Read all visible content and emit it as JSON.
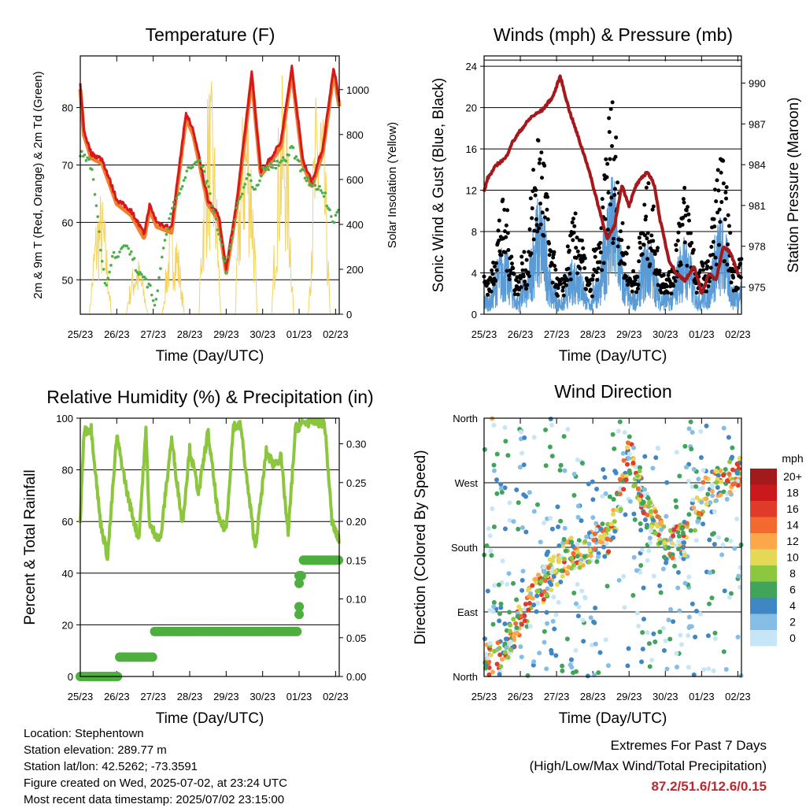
{
  "chart_data": [
    {
      "type": "line",
      "title": "Temperature (F)",
      "xlabel": "Time (Day/UTC)",
      "ylabel": "2m & 9m T (Red, Orange) & 2m Td (Green)",
      "ylabel_right": "Solar Insolation (Yellow)",
      "x_ticks": [
        "25/23",
        "26/23",
        "27/23",
        "28/23",
        "29/23",
        "30/23",
        "01/23",
        "02/23"
      ],
      "ylim": [
        44,
        89
      ],
      "y_ticks": [
        "50",
        "60",
        "70",
        "80"
      ],
      "ylim_right": [
        0,
        1150
      ],
      "y_ticks_right": [
        "0",
        "200",
        "400",
        "600",
        "800",
        "1000"
      ],
      "colors": {
        "t2m": "#d7191c",
        "t9m": "#f08030",
        "td": "#4daf4a",
        "solar": "#f4d35e"
      },
      "series": [
        {
          "name": "2m T",
          "axis": "left",
          "x": [
            0,
            0.1,
            0.3,
            0.6,
            1.0,
            1.4,
            1.75,
            1.9,
            2.1,
            2.5,
            2.9,
            3.1,
            3.5,
            3.8,
            4.0,
            4.3,
            4.7,
            4.95,
            5.2,
            5.5,
            5.8,
            6.1,
            6.35,
            6.65,
            6.95,
            7.1
          ],
          "y": [
            84,
            76,
            72,
            71,
            64,
            62,
            58,
            63,
            60,
            59,
            79,
            76,
            64,
            61,
            52,
            64,
            86,
            69,
            71,
            74,
            87,
            71,
            67,
            73,
            87,
            81
          ]
        },
        {
          "name": "2m Td",
          "axis": "left",
          "x": [
            0,
            0.3,
            0.45,
            0.7,
            0.9,
            1.3,
            1.6,
            1.9,
            2.05,
            2.3,
            2.5,
            2.8,
            3.0,
            3.3,
            3.5,
            3.7,
            4.0,
            4.3,
            4.6,
            4.8,
            5.0,
            5.2,
            5.5,
            5.8,
            6.0,
            6.3,
            6.7,
            6.9,
            7.1
          ],
          "y": [
            72,
            70,
            62,
            48,
            54,
            56,
            51,
            49,
            45,
            57,
            62,
            66,
            70,
            71,
            66,
            61,
            52,
            63,
            68,
            66,
            69,
            70,
            70,
            73,
            70,
            67,
            65,
            60,
            62
          ]
        },
        {
          "name": "Solar",
          "axis": "right",
          "x": [
            0.55,
            1.55,
            2.55,
            3.55,
            4.55,
            5.55,
            6.55
          ],
          "y": [
            530,
            250,
            420,
            1020,
            1020,
            1020,
            1060
          ]
        }
      ]
    },
    {
      "type": "scatter",
      "title": "Winds (mph) & Pressure (mb)",
      "xlabel": "Time (Day/UTC)",
      "ylabel": "Sonic Wind & Gust (Blue, Black)",
      "ylabel_right": "Station Pressure (Maroon)",
      "x_ticks": [
        "25/23",
        "26/23",
        "27/23",
        "28/23",
        "29/23",
        "30/23",
        "01/23",
        "02/23"
      ],
      "ylim": [
        0,
        25
      ],
      "y_ticks": [
        "0",
        "4",
        "8",
        "12",
        "16",
        "20",
        "24"
      ],
      "ylim_right": [
        973,
        992
      ],
      "y_ticks_right": [
        "975",
        "978",
        "981",
        "984",
        "987",
        "990"
      ],
      "colors": {
        "wind": "#5b9bd5",
        "gust": "#000000",
        "pressure": "#a3191c"
      },
      "series": [
        {
          "name": "Pressure",
          "axis": "right",
          "x": [
            0,
            0.1,
            0.35,
            0.6,
            0.75,
            1.0,
            1.3,
            1.6,
            1.9,
            2.1,
            2.35,
            2.6,
            2.85,
            3.1,
            3.4,
            3.6,
            3.8,
            4.0,
            4.2,
            4.5,
            4.7,
            4.85,
            5.1,
            5.3,
            5.55,
            5.8,
            6.0,
            6.2,
            6.4,
            6.6,
            6.8,
            7.0
          ],
          "y": [
            982,
            983,
            984,
            984.5,
            985.5,
            986.5,
            987.5,
            988,
            989,
            990.5,
            988,
            986,
            984,
            981.5,
            978.5,
            979.5,
            982.5,
            981,
            982.5,
            983.5,
            982.5,
            980,
            977,
            976,
            975.5,
            976.5,
            974.5,
            976,
            975.5,
            978,
            977.5,
            976
          ]
        }
      ]
    },
    {
      "type": "line",
      "title": "Relative Humidity (%) & Precipitation (in)",
      "xlabel": "Time (Day/UTC)",
      "ylabel": "Percent & Total Rainfall",
      "x_ticks": [
        "25/23",
        "26/23",
        "27/23",
        "28/23",
        "29/23",
        "30/23",
        "01/23",
        "02/23"
      ],
      "ylim": [
        0,
        100
      ],
      "y_ticks": [
        "0",
        "20",
        "40",
        "60",
        "80",
        "100"
      ],
      "ylim_right": [
        0,
        0.333
      ],
      "y_ticks_right": [
        "0.00",
        "0.05",
        "0.10",
        "0.15",
        "0.20",
        "0.25",
        "0.30"
      ],
      "colors": {
        "rh": "#8cc63f",
        "precip": "#4caf3e"
      },
      "series": [
        {
          "name": "RH",
          "axis": "left",
          "x": [
            0,
            0.1,
            0.3,
            0.55,
            0.75,
            1.0,
            1.3,
            1.6,
            1.8,
            1.9,
            2.2,
            2.5,
            2.8,
            3.0,
            3.25,
            3.5,
            3.8,
            4.0,
            4.2,
            4.4,
            4.6,
            4.8,
            5.1,
            5.3,
            5.5,
            5.7,
            5.9,
            6.1,
            6.4,
            6.7,
            6.9,
            7.1
          ],
          "y": [
            60,
            95,
            96,
            60,
            46,
            93,
            70,
            53,
            95,
            58,
            53,
            92,
            59,
            88,
            71,
            95,
            60,
            57,
            97,
            97,
            72,
            50,
            87,
            82,
            85,
            55,
            96,
            98,
            99,
            98,
            60,
            52
          ]
        },
        {
          "name": "Precip",
          "axis": "right",
          "x": [
            0,
            1.0,
            1.05,
            1.95,
            2.0,
            5.9,
            5.95,
            6.0,
            6.1,
            7.1
          ],
          "y": [
            0.0,
            0.0,
            0.025,
            0.025,
            0.058,
            0.058,
            0.09,
            0.13,
            0.15,
            0.15
          ]
        }
      ]
    },
    {
      "type": "scatter",
      "title": "Wind Direction",
      "xlabel": "Time (Day/UTC)",
      "ylabel": "Direction (Colored By Speed)",
      "x_ticks": [
        "25/23",
        "26/23",
        "27/23",
        "28/23",
        "29/23",
        "30/23",
        "01/23",
        "02/23"
      ],
      "y_categories": [
        "North",
        "East",
        "South",
        "West",
        "North"
      ],
      "ylim": [
        0,
        360
      ],
      "legend": {
        "title": "mph",
        "labels": [
          "20+",
          "18",
          "16",
          "14",
          "12",
          "10",
          "8",
          "6",
          "4",
          "2",
          "0"
        ],
        "colors": [
          "#a31a1c",
          "#cb181d",
          "#e03a2a",
          "#f26a2e",
          "#fba84b",
          "#e6d857",
          "#8dc63f",
          "#41a45b",
          "#3f86c4",
          "#84bde6",
          "#c6e6f7"
        ],
        "placement": "right"
      },
      "trend": {
        "x": [
          0.1,
          0.5,
          1.0,
          1.5,
          2.0,
          2.5,
          3.0,
          3.5,
          4.0,
          4.5,
          5.0,
          5.5,
          6.0,
          6.5,
          7.0
        ],
        "y": [
          20,
          30,
          80,
          120,
          150,
          175,
          180,
          195,
          310,
          230,
          180,
          190,
          250,
          270,
          290
        ]
      }
    }
  ],
  "info": {
    "location": "Location: Stephentown",
    "elevation": "Station elevation: 289.77 m",
    "latlon": "Station lat/lon: 42.5262; -73.3591",
    "created": "Figure created on Wed, 2025-07-02, at 23:24 UTC",
    "recent": "Most recent data timestamp: 2025/07/02 23:15:00"
  },
  "extremes": {
    "title": "Extremes For Past 7 Days",
    "subtitle": "(High/Low/Max Wind/Total Precipitation)",
    "values": "87.2/51.6/12.6/0.15"
  }
}
